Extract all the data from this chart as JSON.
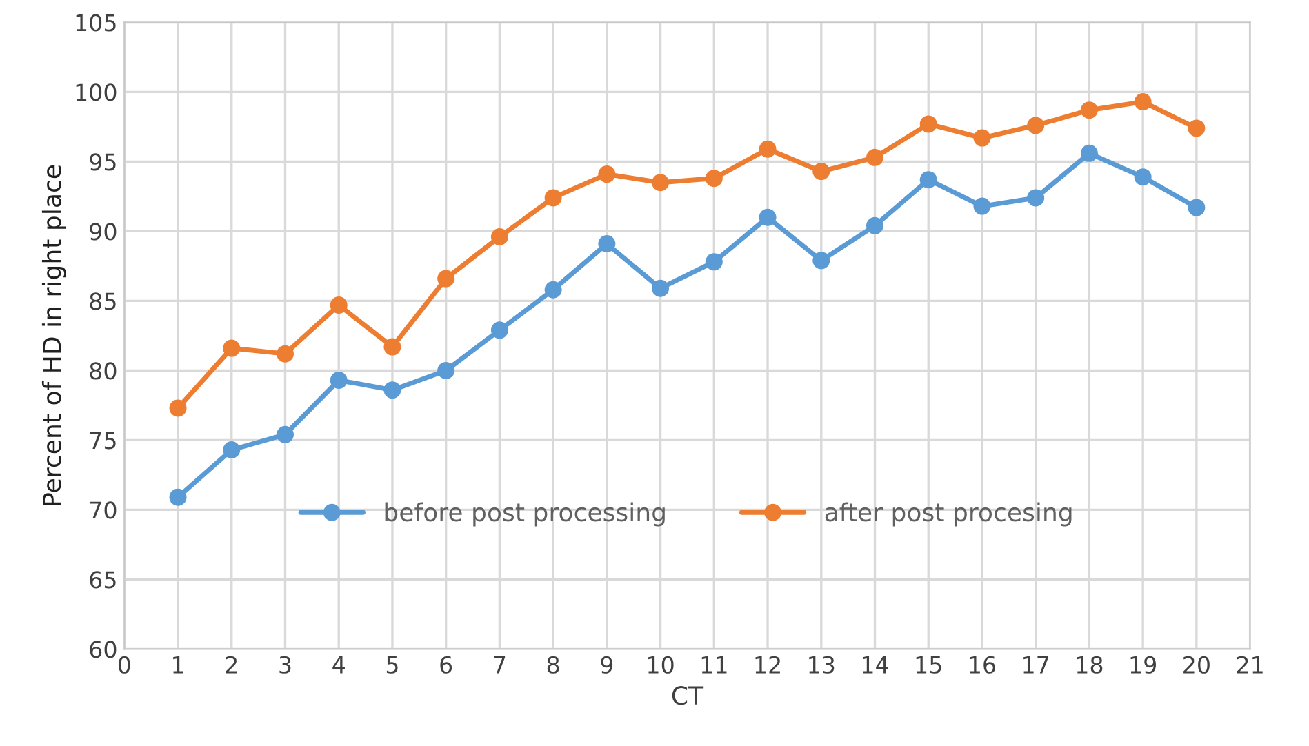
{
  "chart_data": {
    "type": "line",
    "xlabel": "CT",
    "ylabel": "Percent of HD in right place",
    "x": [
      1,
      2,
      3,
      4,
      5,
      6,
      7,
      8,
      9,
      10,
      11,
      12,
      13,
      14,
      15,
      16,
      17,
      18,
      19,
      20
    ],
    "series": [
      {
        "name": "before post processing",
        "color": "#5b9bd5",
        "values": [
          70.9,
          74.3,
          75.4,
          79.3,
          78.6,
          80.0,
          82.9,
          85.8,
          89.1,
          85.9,
          87.8,
          91.0,
          87.9,
          90.4,
          93.7,
          91.8,
          92.4,
          95.6,
          93.9,
          91.7
        ]
      },
      {
        "name": "after post procesing",
        "color": "#ed7d31",
        "values": [
          77.3,
          81.6,
          81.2,
          84.7,
          81.7,
          86.6,
          89.6,
          92.4,
          94.1,
          93.5,
          93.8,
          95.9,
          94.3,
          95.3,
          97.7,
          96.7,
          97.6,
          98.7,
          99.3,
          97.4
        ]
      }
    ],
    "xlim": [
      0,
      21
    ],
    "xticks": [
      0,
      1,
      2,
      3,
      4,
      5,
      6,
      7,
      8,
      9,
      10,
      11,
      12,
      13,
      14,
      15,
      16,
      17,
      18,
      19,
      20,
      21
    ],
    "ylim": [
      60,
      105
    ],
    "yticks": [
      60,
      65,
      70,
      75,
      80,
      85,
      90,
      95,
      100,
      105
    ],
    "grid": true,
    "legend": "bottom",
    "marker": "circle",
    "line_style": "solid"
  }
}
